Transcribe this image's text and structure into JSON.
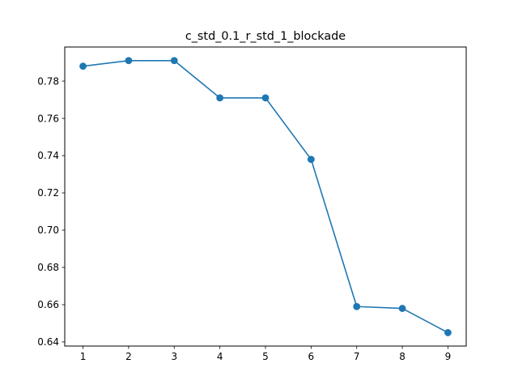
{
  "chart_data": {
    "type": "line",
    "title": "c_std_0.1_r_std_1_blockade",
    "xlabel": "",
    "ylabel": "",
    "x": [
      1,
      2,
      3,
      4,
      5,
      6,
      7,
      8,
      9
    ],
    "series": [
      {
        "values": [
          0.788,
          0.791,
          0.791,
          0.771,
          0.771,
          0.738,
          0.659,
          0.658,
          0.645
        ],
        "color": "#1f77b4",
        "marker": "circle"
      }
    ],
    "xlim": [
      0.6,
      9.4
    ],
    "ylim": [
      0.6378,
      0.7983
    ],
    "x_ticks": [
      1,
      2,
      3,
      4,
      5,
      6,
      7,
      8,
      9
    ],
    "x_tick_labels": [
      "1",
      "2",
      "3",
      "4",
      "5",
      "6",
      "7",
      "8",
      "9"
    ],
    "y_ticks": [
      0.64,
      0.66,
      0.68,
      0.7,
      0.72,
      0.74,
      0.76,
      0.78
    ],
    "y_tick_labels": [
      "0.64",
      "0.66",
      "0.68",
      "0.70",
      "0.72",
      "0.74",
      "0.76",
      "0.78"
    ],
    "grid": false,
    "legend": "none"
  }
}
